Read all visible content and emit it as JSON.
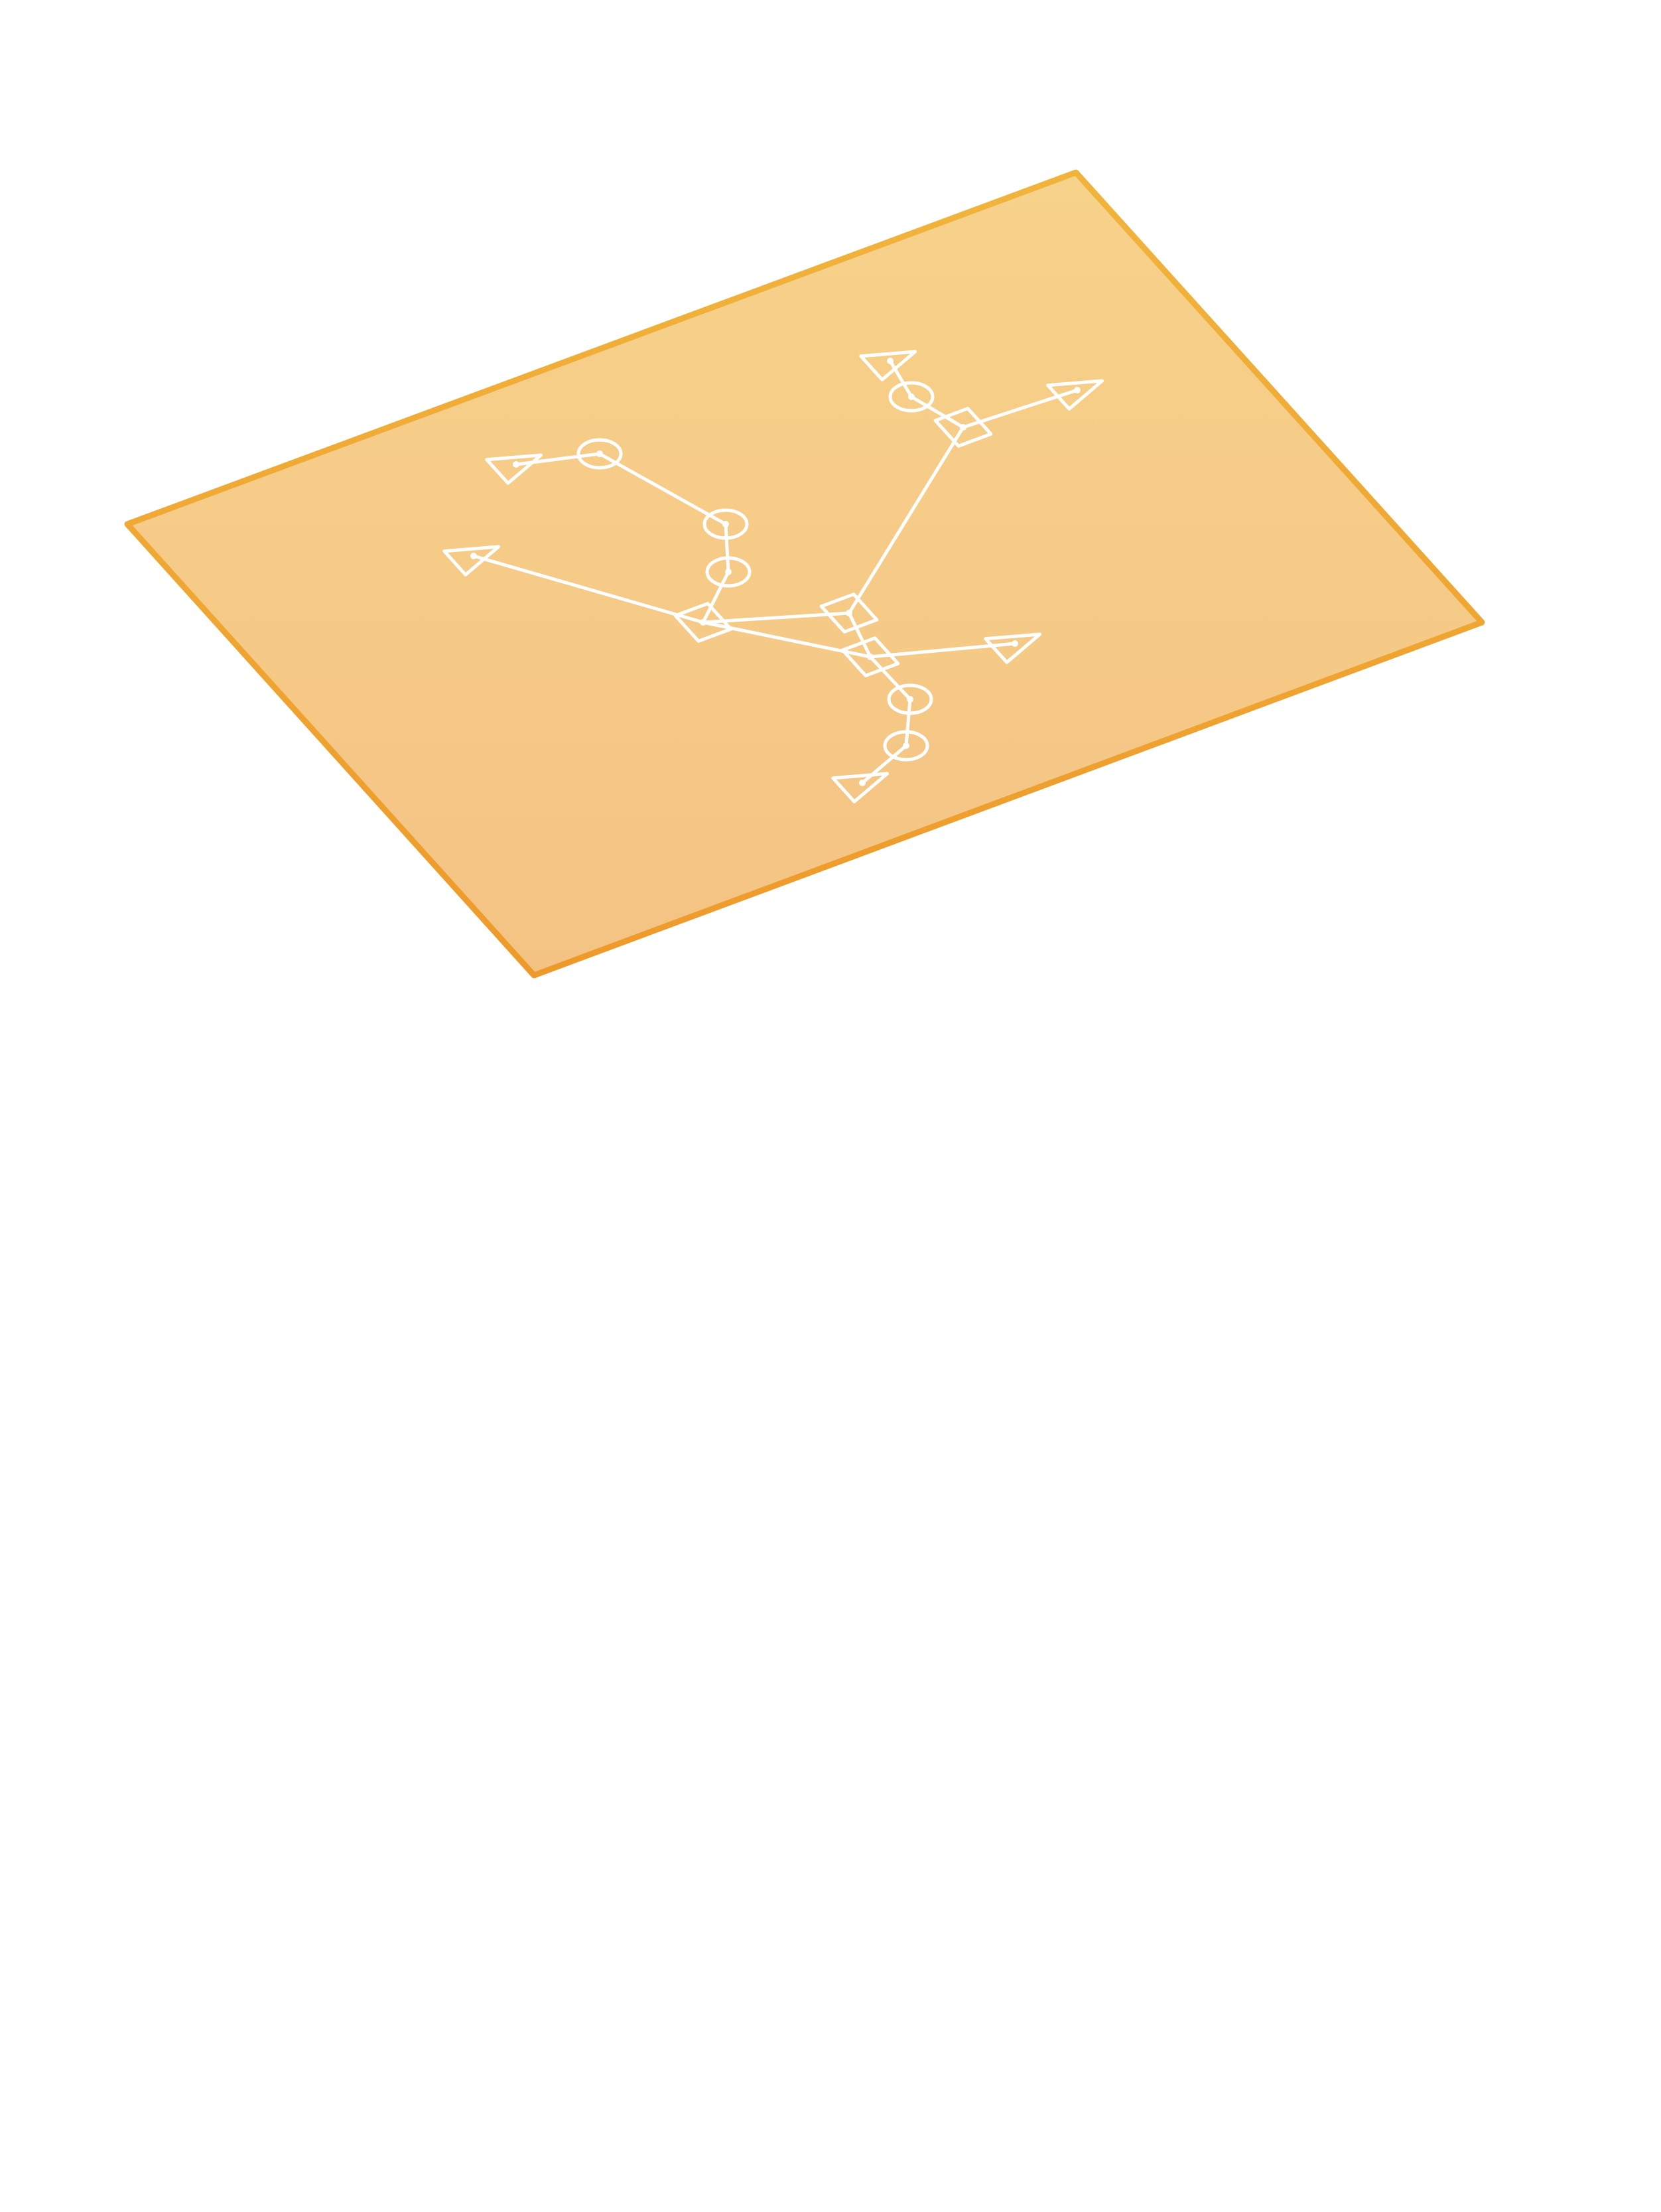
{
  "plane": {
    "fill_top": "#F7D28A",
    "fill_bottom": "#F4C384",
    "stroke_top": "#F0B43C",
    "stroke_bottom": "#EE9A2A"
  },
  "graph": {
    "line_color": "#FFFFFF",
    "nodes": [
      {
        "id": "t1",
        "shape": "triangle"
      },
      {
        "id": "c1",
        "shape": "circle"
      },
      {
        "id": "c2",
        "shape": "circle"
      },
      {
        "id": "c3",
        "shape": "circle"
      },
      {
        "id": "t2",
        "shape": "triangle"
      },
      {
        "id": "d1",
        "shape": "diamond"
      },
      {
        "id": "d2",
        "shape": "diamond"
      },
      {
        "id": "d3",
        "shape": "diamond"
      },
      {
        "id": "d4",
        "shape": "diamond"
      },
      {
        "id": "t3",
        "shape": "triangle"
      },
      {
        "id": "c4",
        "shape": "circle"
      },
      {
        "id": "t4",
        "shape": "triangle"
      },
      {
        "id": "t5",
        "shape": "triangle"
      },
      {
        "id": "c5",
        "shape": "circle"
      },
      {
        "id": "c6",
        "shape": "circle"
      },
      {
        "id": "t6",
        "shape": "triangle"
      }
    ],
    "edges": [
      [
        "t1",
        "c1"
      ],
      [
        "c1",
        "c2"
      ],
      [
        "c2",
        "c3"
      ],
      [
        "c3",
        "d1"
      ],
      [
        "t2",
        "d1"
      ],
      [
        "d1",
        "d2"
      ],
      [
        "d1",
        "d4"
      ],
      [
        "d2",
        "d4"
      ],
      [
        "d2",
        "d3"
      ],
      [
        "d3",
        "c4"
      ],
      [
        "c4",
        "t3"
      ],
      [
        "d3",
        "t4"
      ],
      [
        "d4",
        "t5"
      ],
      [
        "d4",
        "c5"
      ],
      [
        "c5",
        "c6"
      ],
      [
        "c6",
        "t6"
      ]
    ]
  }
}
